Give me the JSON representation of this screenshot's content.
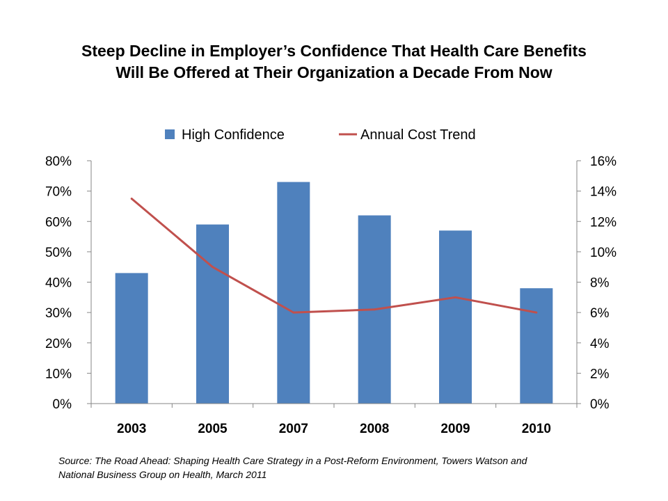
{
  "chart_data": {
    "type": "bar",
    "title": [
      "Steep Decline in Employer’s Confidence That Health Care Benefits",
      "Will Be Offered at Their Organization a Decade From Now"
    ],
    "categories": [
      "2003",
      "2005",
      "2007",
      "2008",
      "2009",
      "2010"
    ],
    "series": [
      {
        "name": "High Confidence",
        "type": "bar",
        "axis": "left",
        "values": [
          43,
          59,
          73,
          62,
          57,
          38
        ]
      },
      {
        "name": "Annual Cost Trend",
        "type": "line",
        "axis": "right",
        "values": [
          13.5,
          9.0,
          6.0,
          6.2,
          7.0,
          6.0
        ]
      }
    ],
    "y_left": {
      "min": 0,
      "max": 80,
      "step": 10,
      "tick_labels": [
        "0%",
        "10%",
        "20%",
        "30%",
        "40%",
        "50%",
        "60%",
        "70%",
        "80%"
      ]
    },
    "y_right": {
      "min": 0,
      "max": 16,
      "step": 2,
      "tick_labels": [
        "0%",
        "2%",
        "4%",
        "6%",
        "8%",
        "10%",
        "12%",
        "14%",
        "16%"
      ]
    },
    "legend_position": "top",
    "grid": false,
    "colors": {
      "bar": "#4F81BD",
      "line": "#C0504D",
      "axis": "#868686"
    }
  },
  "source": [
    "Source: The Road Ahead: Shaping Health Care Strategy in a Post-Reform Environment, Towers Watson and",
    "National Business Group on Health, March 2011"
  ]
}
